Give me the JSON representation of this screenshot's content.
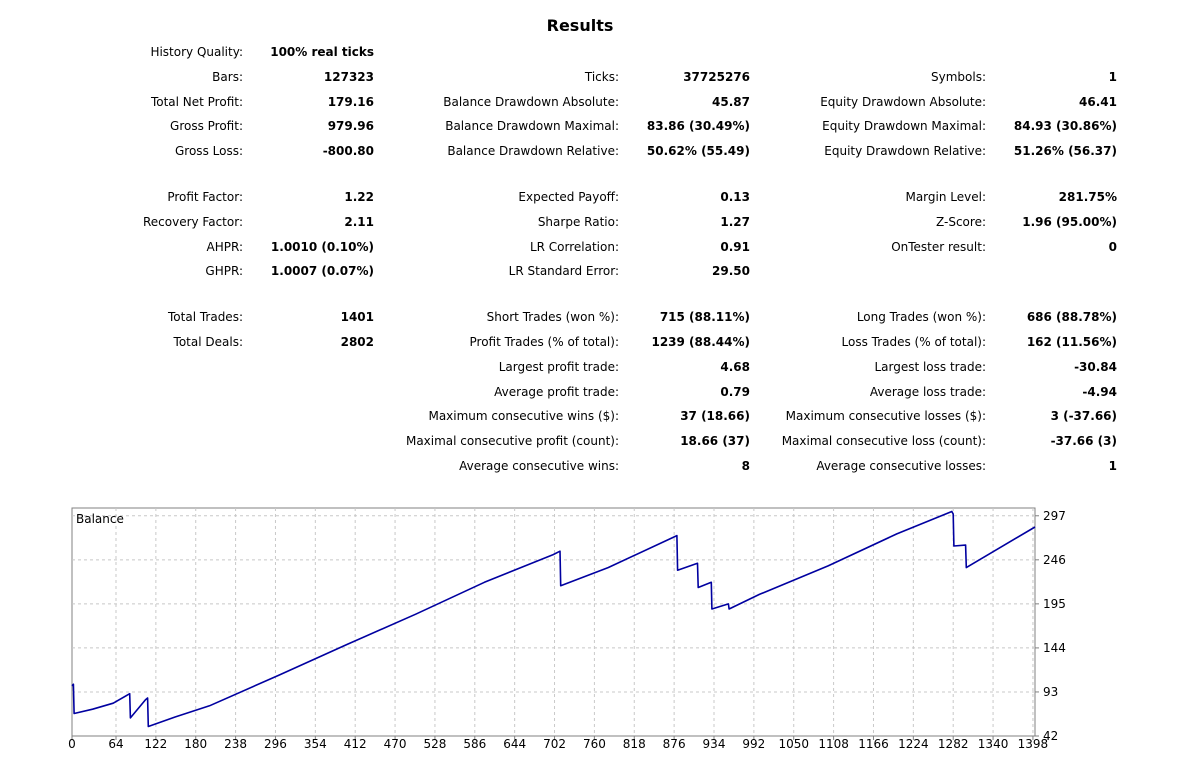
{
  "report": {
    "title": "Results",
    "history_quality": {
      "label": "History Quality:",
      "value": "100% real ticks"
    },
    "bars": {
      "label": "Bars:",
      "value": "127323"
    },
    "ticks": {
      "label": "Ticks:",
      "value": "37725276"
    },
    "symbols": {
      "label": "Symbols:",
      "value": "1"
    },
    "total_net_profit": {
      "label": "Total Net Profit:",
      "value": "179.16"
    },
    "balance_dd_absolute": {
      "label": "Balance Drawdown Absolute:",
      "value": "45.87"
    },
    "equity_dd_absolute": {
      "label": "Equity Drawdown Absolute:",
      "value": "46.41"
    },
    "gross_profit": {
      "label": "Gross Profit:",
      "value": "979.96"
    },
    "balance_dd_maximal": {
      "label": "Balance Drawdown Maximal:",
      "value": "83.86 (30.49%)"
    },
    "equity_dd_maximal": {
      "label": "Equity Drawdown Maximal:",
      "value": "84.93 (30.86%)"
    },
    "gross_loss": {
      "label": "Gross Loss:",
      "value": "-800.80"
    },
    "balance_dd_relative": {
      "label": "Balance Drawdown Relative:",
      "value": "50.62% (55.49)"
    },
    "equity_dd_relative": {
      "label": "Equity Drawdown Relative:",
      "value": "51.26% (56.37)"
    },
    "profit_factor": {
      "label": "Profit Factor:",
      "value": "1.22"
    },
    "expected_payoff": {
      "label": "Expected Payoff:",
      "value": "0.13"
    },
    "margin_level": {
      "label": "Margin Level:",
      "value": "281.75%"
    },
    "recovery_factor": {
      "label": "Recovery Factor:",
      "value": "2.11"
    },
    "sharpe_ratio": {
      "label": "Sharpe Ratio:",
      "value": "1.27"
    },
    "z_score": {
      "label": "Z-Score:",
      "value": "1.96 (95.00%)"
    },
    "ahpr": {
      "label": "AHPR:",
      "value": "1.0010 (0.10%)"
    },
    "lr_correlation": {
      "label": "LR Correlation:",
      "value": "0.91"
    },
    "ontester_result": {
      "label": "OnTester result:",
      "value": "0"
    },
    "ghpr": {
      "label": "GHPR:",
      "value": "1.0007 (0.07%)"
    },
    "lr_standard_error": {
      "label": "LR Standard Error:",
      "value": "29.50"
    },
    "total_trades": {
      "label": "Total Trades:",
      "value": "1401"
    },
    "short_trades": {
      "label": "Short Trades (won %):",
      "value": "715 (88.11%)"
    },
    "long_trades": {
      "label": "Long Trades (won %):",
      "value": "686 (88.78%)"
    },
    "total_deals": {
      "label": "Total Deals:",
      "value": "2802"
    },
    "profit_trades": {
      "label": "Profit Trades (% of total):",
      "value": "1239 (88.44%)"
    },
    "loss_trades": {
      "label": "Loss Trades (% of total):",
      "value": "162 (11.56%)"
    },
    "largest_profit_trade": {
      "label": "Largest profit trade:",
      "value": "4.68"
    },
    "largest_loss_trade": {
      "label": "Largest loss trade:",
      "value": "-30.84"
    },
    "average_profit_trade": {
      "label": "Average profit trade:",
      "value": "0.79"
    },
    "average_loss_trade": {
      "label": "Average loss trade:",
      "value": "-4.94"
    },
    "max_consecutive_wins": {
      "label": "Maximum consecutive wins ($):",
      "value": "37 (18.66)"
    },
    "max_consecutive_losses": {
      "label": "Maximum consecutive losses ($):",
      "value": "3 (-37.66)"
    },
    "maximal_consecutive_profit": {
      "label": "Maximal consecutive profit (count):",
      "value": "18.66 (37)"
    },
    "maximal_consecutive_loss": {
      "label": "Maximal consecutive loss (count):",
      "value": "-37.66 (3)"
    },
    "average_consecutive_wins": {
      "label": "Average consecutive wins:",
      "value": "8"
    },
    "average_consecutive_losses": {
      "label": "Average consecutive losses:",
      "value": "1"
    }
  },
  "chart_data": {
    "type": "line",
    "title": "Balance",
    "x_ticks": [
      0,
      64,
      122,
      180,
      238,
      296,
      354,
      412,
      470,
      528,
      586,
      644,
      702,
      760,
      818,
      876,
      934,
      992,
      1050,
      1108,
      1166,
      1224,
      1282,
      1340,
      1398
    ],
    "y_ticks": [
      297,
      246,
      195,
      144,
      93,
      42
    ],
    "xlim": [
      0,
      1401
    ],
    "ylim": [
      42,
      306
    ],
    "grid": true,
    "line_color": "#0000a0",
    "series": [
      {
        "x": [
          0,
          2,
          3,
          30,
          60,
          84,
          85,
          107,
          110,
          111,
          150,
          200,
          300,
          400,
          500,
          600,
          700,
          710,
          711,
          780,
          880,
          881,
          910,
          911,
          930,
          931,
          955,
          956,
          1000,
          1100,
          1200,
          1280,
          1282,
          1283,
          1300,
          1301,
          1350,
          1401
        ],
        "y": [
          100,
          102,
          68,
          73,
          80,
          91,
          63,
          84,
          86,
          53,
          64,
          77,
          112,
          148,
          183,
          220,
          252,
          256,
          216,
          237,
          274,
          234,
          242,
          214,
          220,
          189,
          195,
          189,
          206,
          239,
          276,
          302,
          299,
          262,
          263,
          237,
          260,
          284
        ]
      }
    ]
  }
}
